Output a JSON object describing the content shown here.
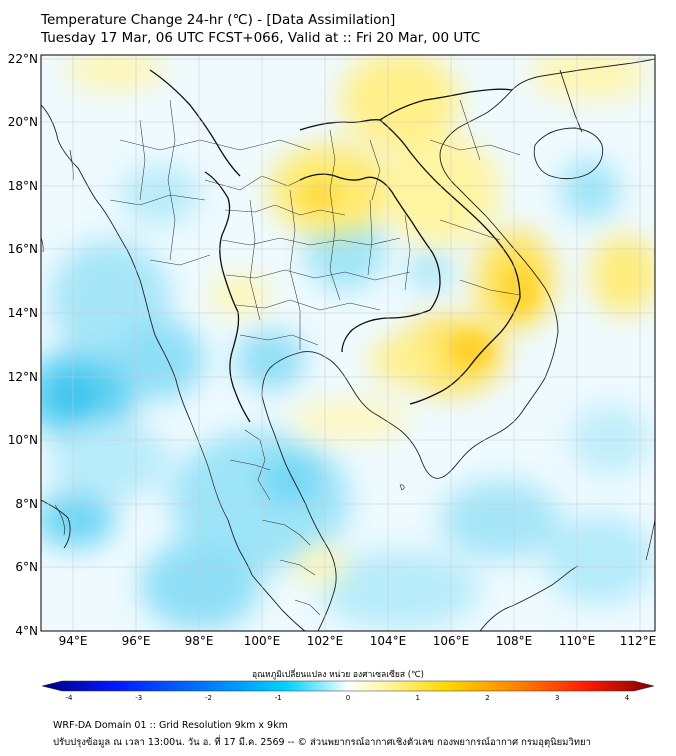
{
  "title": {
    "line1": "Temperature Change 24-hr (℃) - [Data Assimilation]",
    "line2": "Tuesday 17 Mar, 06 UTC FCST+066, Valid at :: Fri 20 Mar, 00 UTC"
  },
  "map": {
    "lat_labels": [
      "22°N",
      "20°N",
      "18°N",
      "16°N",
      "14°N",
      "12°N",
      "10°N",
      "8°N",
      "6°N",
      "4°N"
    ],
    "lon_labels": [
      "94°E",
      "96°E",
      "98°E",
      "100°E",
      "102°E",
      "104°E",
      "106°E",
      "108°E",
      "110°E",
      "112°E"
    ],
    "lat_range": [
      4,
      22.3
    ],
    "lon_range": [
      93,
      112.4
    ]
  },
  "colorbar": {
    "title": "อุณหภูมิเปลี่ยนแปลง หน่วย องศาเซลเซียส (℃)",
    "ticks": [
      "-4",
      "-3",
      "-2",
      "-1",
      "0",
      "1",
      "2",
      "3",
      "4"
    ],
    "min": -4,
    "max": 4,
    "colors": [
      "#00007f",
      "#0019ff",
      "#0080ff",
      "#00d4ff",
      "#7ee8ff",
      "#ffffff",
      "#fff59a",
      "#ffd100",
      "#ff7a00",
      "#ff1a00",
      "#7f0000"
    ]
  },
  "footer": {
    "line1": "WRF-DA Domain 01 :: Grid Resolution 9km x 9km",
    "line2": "ปรับปรุงข้อมูล ณ เวลา 13:00น. วัน อ. ที่ 17 มี.ค. 2569 -- © ส่วนพยากรณ์อากาศเชิงตัวเลข กองพยากรณ์อากาศ กรมอุตุนิยมวิทยา"
  }
}
